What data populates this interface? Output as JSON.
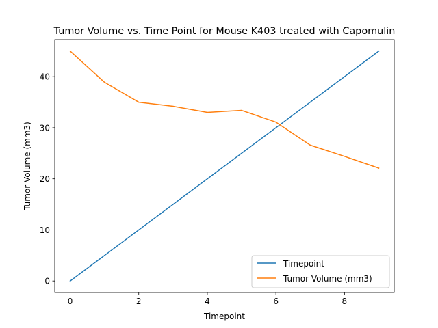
{
  "chart_data": {
    "type": "line",
    "title": "Tumor Volume vs. Time Point for Mouse K403 treated with Capomulin",
    "xlabel": "Timepoint",
    "ylabel": "Tumor Volume (mm3)",
    "x": [
      0,
      1,
      2,
      3,
      4,
      5,
      6,
      7,
      8,
      9
    ],
    "xlim": [
      -0.45,
      9.45
    ],
    "ylim": [
      -2.25,
      47.25
    ],
    "xticks": [
      "0",
      "2",
      "4",
      "6",
      "8"
    ],
    "yticks": [
      "0",
      "10",
      "20",
      "30",
      "40"
    ],
    "grid": false,
    "legend_position": "lower-right",
    "series": [
      {
        "name": "Timepoint",
        "color": "#1f77b4",
        "values": [
          0,
          5,
          10,
          15,
          20,
          25,
          30,
          35,
          40,
          45
        ]
      },
      {
        "name": "Tumor Volume (mm3)",
        "color": "#ff7f0e",
        "values": [
          45.0,
          38.9,
          35.0,
          34.2,
          33.0,
          33.4,
          31.1,
          26.6,
          24.4,
          22.1
        ]
      }
    ]
  }
}
